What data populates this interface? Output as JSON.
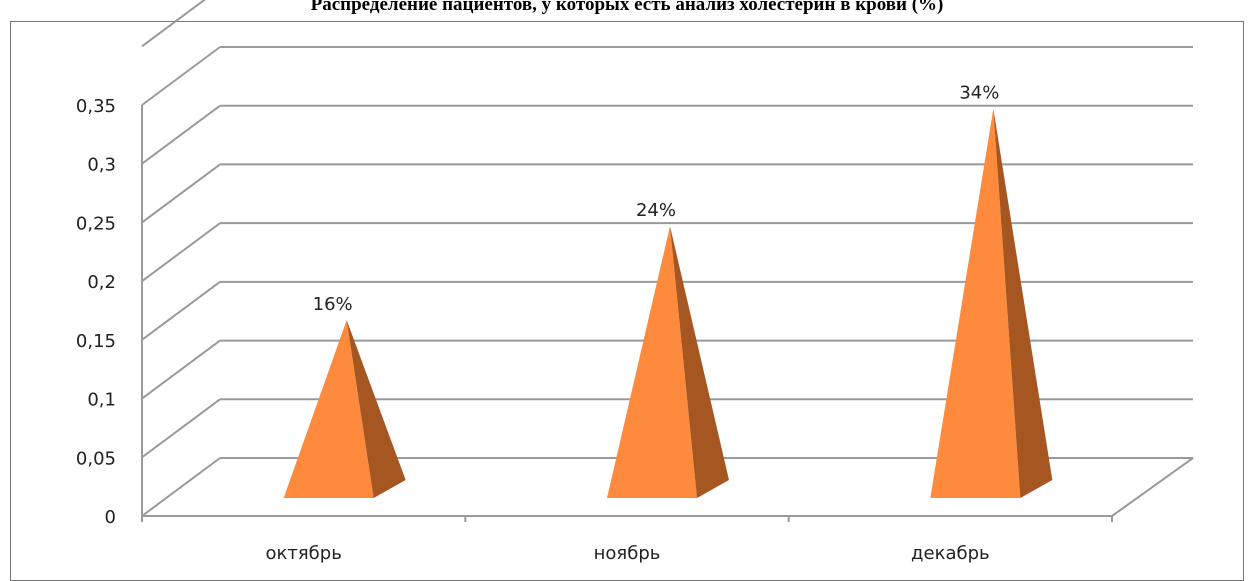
{
  "chart_data": {
    "type": "bar",
    "bar_shape": "3d-pyramid",
    "title": "Распределение пациентов, у которых есть анализ холестерин в крови (%)",
    "categories": [
      "октябрь",
      "ноябрь",
      "декабрь"
    ],
    "series": [
      {
        "values": [
          0.16,
          0.24,
          0.34
        ],
        "labels": [
          "16%",
          "24%",
          "34%"
        ]
      }
    ],
    "y_ticks": [
      "0",
      "0,05",
      "0,1",
      "0,15",
      "0,2",
      "0,25",
      "0,3",
      "0,35"
    ],
    "ylim": [
      0,
      0.35
    ],
    "grid": true,
    "legend": "none",
    "colors": {
      "front": "#fd8a3d",
      "side": "#a65621",
      "grid": "#9a9a9a",
      "axis": "#9a9a9a"
    }
  }
}
